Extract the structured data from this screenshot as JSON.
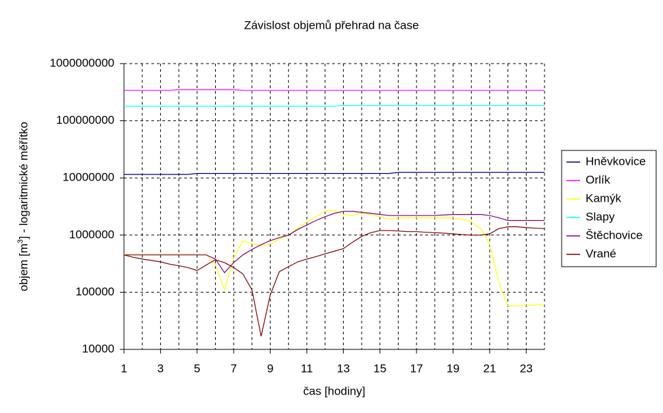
{
  "chart_data": {
    "type": "line",
    "title": "Závislost objemů přehrad na čase",
    "xlabel": "čas [hodiny]",
    "ylabel": [
      "objem [m",
      "3",
      "] - logaritmické měřítko"
    ],
    "log_y": true,
    "grid": true,
    "legend": "right",
    "xlim": [
      1,
      24
    ],
    "xticks": [
      1,
      3,
      5,
      7,
      9,
      11,
      13,
      15,
      17,
      19,
      21,
      23
    ],
    "x_grid": [
      2,
      3,
      4,
      5,
      6,
      7,
      8,
      9,
      10,
      11,
      12,
      13,
      14,
      15,
      16,
      17,
      18,
      19,
      20,
      21,
      22,
      23,
      24
    ],
    "ylim": [
      10000,
      1000000000
    ],
    "yticks": [
      10000,
      100000,
      1000000,
      10000000,
      100000000,
      1000000000
    ],
    "x": [
      1,
      1.5,
      2,
      2.5,
      3,
      3.5,
      4,
      4.5,
      5,
      5.5,
      6,
      6.5,
      7,
      7.5,
      8,
      8.5,
      9,
      9.5,
      10,
      10.5,
      11,
      11.5,
      12,
      12.5,
      13,
      13.5,
      14,
      14.5,
      15,
      15.5,
      16,
      16.5,
      17,
      17.5,
      18,
      18.5,
      19,
      19.5,
      20,
      20.5,
      21,
      21.5,
      22,
      22.5,
      23,
      23.5,
      24
    ],
    "series": [
      {
        "name": "Hněvkovice",
        "color": "#000080",
        "values": [
          11500000,
          11500000,
          11500000,
          11500000,
          11500000,
          11500000,
          11500000,
          11500000,
          12000000,
          12000000,
          12000000,
          12000000,
          12000000,
          12000000,
          12000000,
          12000000,
          12000000,
          12000000,
          12000000,
          12000000,
          12000000,
          12000000,
          12000000,
          12000000,
          12000000,
          12000000,
          12000000,
          12000000,
          12000000,
          12000000,
          12500000,
          12500000,
          12500000,
          12500000,
          12500000,
          12500000,
          12500000,
          12500000,
          12500000,
          12500000,
          12500000,
          12500000,
          12500000,
          12500000,
          12500000,
          12500000,
          12500000
        ]
      },
      {
        "name": "Orlík",
        "color": "#ff00ff",
        "values": [
          340000000,
          340000000,
          340000000,
          340000000,
          340000000,
          340000000,
          350000000,
          350000000,
          350000000,
          350000000,
          350000000,
          350000000,
          350000000,
          340000000,
          340000000,
          340000000,
          340000000,
          340000000,
          340000000,
          340000000,
          340000000,
          340000000,
          340000000,
          340000000,
          340000000,
          340000000,
          340000000,
          340000000,
          340000000,
          340000000,
          340000000,
          340000000,
          340000000,
          340000000,
          340000000,
          340000000,
          340000000,
          340000000,
          340000000,
          340000000,
          340000000,
          340000000,
          340000000,
          340000000,
          340000000,
          340000000,
          340000000
        ]
      },
      {
        "name": "Kamýk",
        "color": "#ffff00",
        "values": [
          460000,
          460000,
          460000,
          460000,
          460000,
          460000,
          460000,
          460000,
          460000,
          460000,
          300000,
          110000,
          400000,
          800000,
          700000,
          650000,
          700000,
          850000,
          1000000,
          1300000,
          1700000,
          2100000,
          2600000,
          2700000,
          2300000,
          2200000,
          2400000,
          2300000,
          2100000,
          1900000,
          2000000,
          2000000,
          2000000,
          2000000,
          2000000,
          2000000,
          2000000,
          1900000,
          1700000,
          1300000,
          700000,
          150000,
          58000,
          58000,
          59000,
          60000,
          60000
        ]
      },
      {
        "name": "Slapy",
        "color": "#00ffff",
        "values": [
          180000000,
          180000000,
          180000000,
          180000000,
          180000000,
          180000000,
          180000000,
          180000000,
          180000000,
          180000000,
          180000000,
          180000000,
          180000000,
          180000000,
          180000000,
          180000000,
          180000000,
          180000000,
          180000000,
          180000000,
          180000000,
          180000000,
          180000000,
          180000000,
          185000000,
          185000000,
          185000000,
          185000000,
          185000000,
          185000000,
          185000000,
          185000000,
          185000000,
          185000000,
          185000000,
          185000000,
          185000000,
          185000000,
          185000000,
          185000000,
          185000000,
          185000000,
          185000000,
          185000000,
          185000000,
          185000000,
          185000000
        ]
      },
      {
        "name": "Štěchovice",
        "color": "#800080",
        "values": [
          450000,
          450000,
          450000,
          450000,
          450000,
          450000,
          450000,
          450000,
          450000,
          450000,
          380000,
          220000,
          330000,
          450000,
          560000,
          680000,
          800000,
          900000,
          1000000,
          1250000,
          1500000,
          1800000,
          2100000,
          2400000,
          2600000,
          2600000,
          2500000,
          2400000,
          2300000,
          2200000,
          2200000,
          2200000,
          2200000,
          2200000,
          2200000,
          2250000,
          2300000,
          2300000,
          2300000,
          2300000,
          2200000,
          2000000,
          1800000,
          1800000,
          1800000,
          1800000,
          1800000
        ]
      },
      {
        "name": "Vrané",
        "color": "#800000",
        "values": [
          450000,
          410000,
          380000,
          360000,
          340000,
          310000,
          290000,
          270000,
          240000,
          300000,
          370000,
          330000,
          270000,
          210000,
          110000,
          17000,
          90000,
          230000,
          280000,
          340000,
          380000,
          420000,
          470000,
          520000,
          580000,
          750000,
          950000,
          1100000,
          1200000,
          1200000,
          1180000,
          1150000,
          1150000,
          1120000,
          1100000,
          1080000,
          1050000,
          1020000,
          1000000,
          1000000,
          1050000,
          1300000,
          1400000,
          1400000,
          1350000,
          1320000,
          1300000
        ]
      }
    ]
  }
}
